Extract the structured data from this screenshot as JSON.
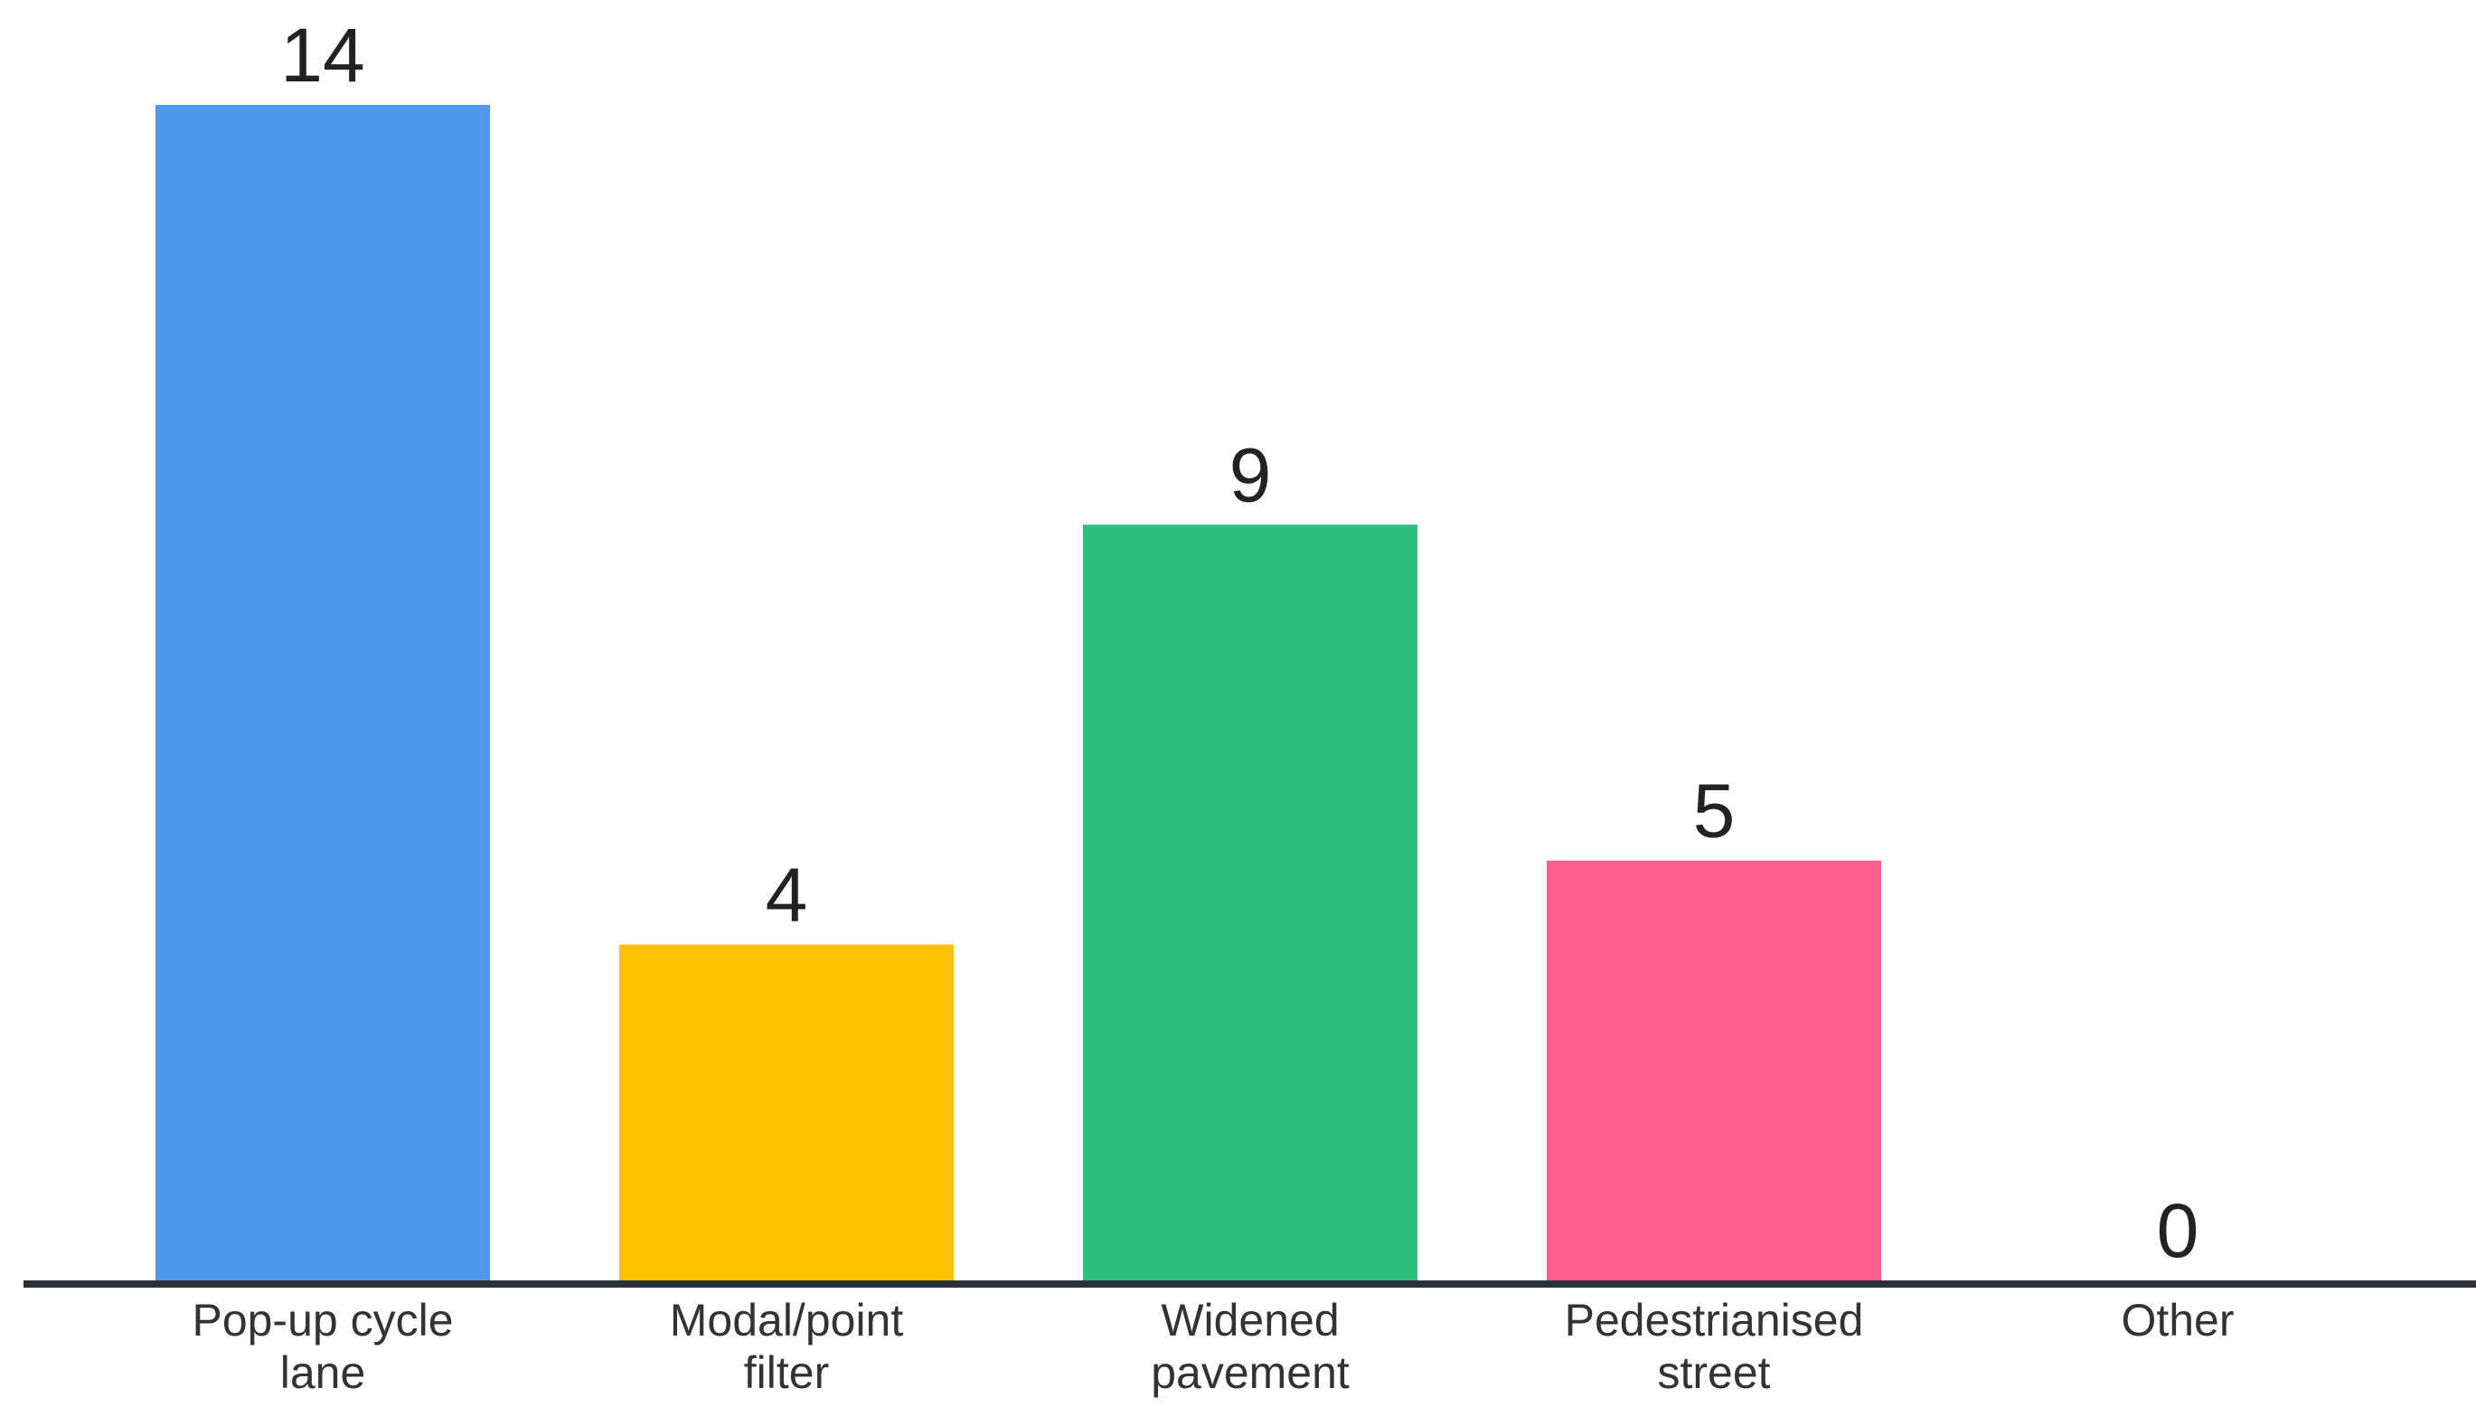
{
  "chart_data": {
    "type": "bar",
    "title": "",
    "xlabel": "",
    "ylabel": "",
    "ylim": [
      0,
      14
    ],
    "grid": false,
    "legend": "none",
    "categories": [
      [
        "Pop-up cycle",
        "lane"
      ],
      [
        "Modal/point",
        "filter"
      ],
      [
        "Widened",
        "pavement"
      ],
      [
        "Pedestrianised",
        "street"
      ],
      [
        "Other"
      ]
    ],
    "values": [
      14,
      4,
      9,
      5,
      0
    ],
    "data_labels": [
      "14",
      "4",
      "9",
      "5",
      "0"
    ],
    "colors": [
      "#4f98ee",
      "#fcc200",
      "#2ac27c",
      "#fe5e8f",
      "#ffffff"
    ],
    "axis_color": "#2b2f36"
  }
}
